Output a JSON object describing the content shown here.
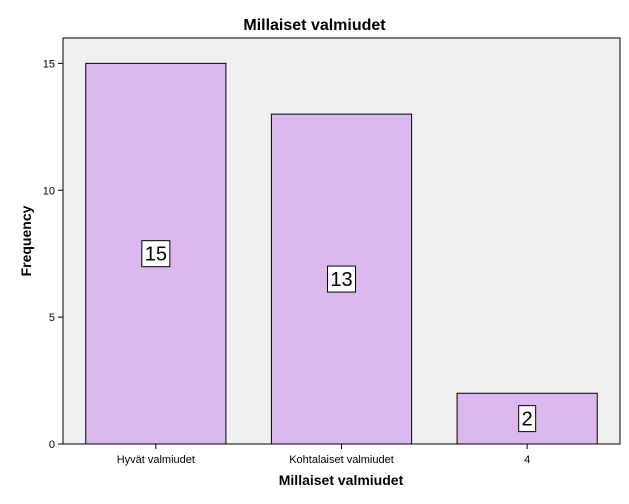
{
  "chart_data": {
    "type": "bar",
    "title": "Millaiset valmiudet",
    "xlabel": "Millaiset valmiudet",
    "ylabel": "Frequency",
    "categories": [
      "Hyvät valmiudet",
      "Kohtalaiset valmiudet",
      "4"
    ],
    "values": [
      15,
      13,
      2
    ],
    "data_labels": [
      "15",
      "13",
      "2"
    ],
    "ylim": [
      0,
      16
    ],
    "yticks": [
      0,
      5,
      10,
      15
    ],
    "grid": false,
    "legend": "none",
    "colors": {
      "bar": "#dcb8f0",
      "plot_background": "#f0f0f0"
    }
  }
}
